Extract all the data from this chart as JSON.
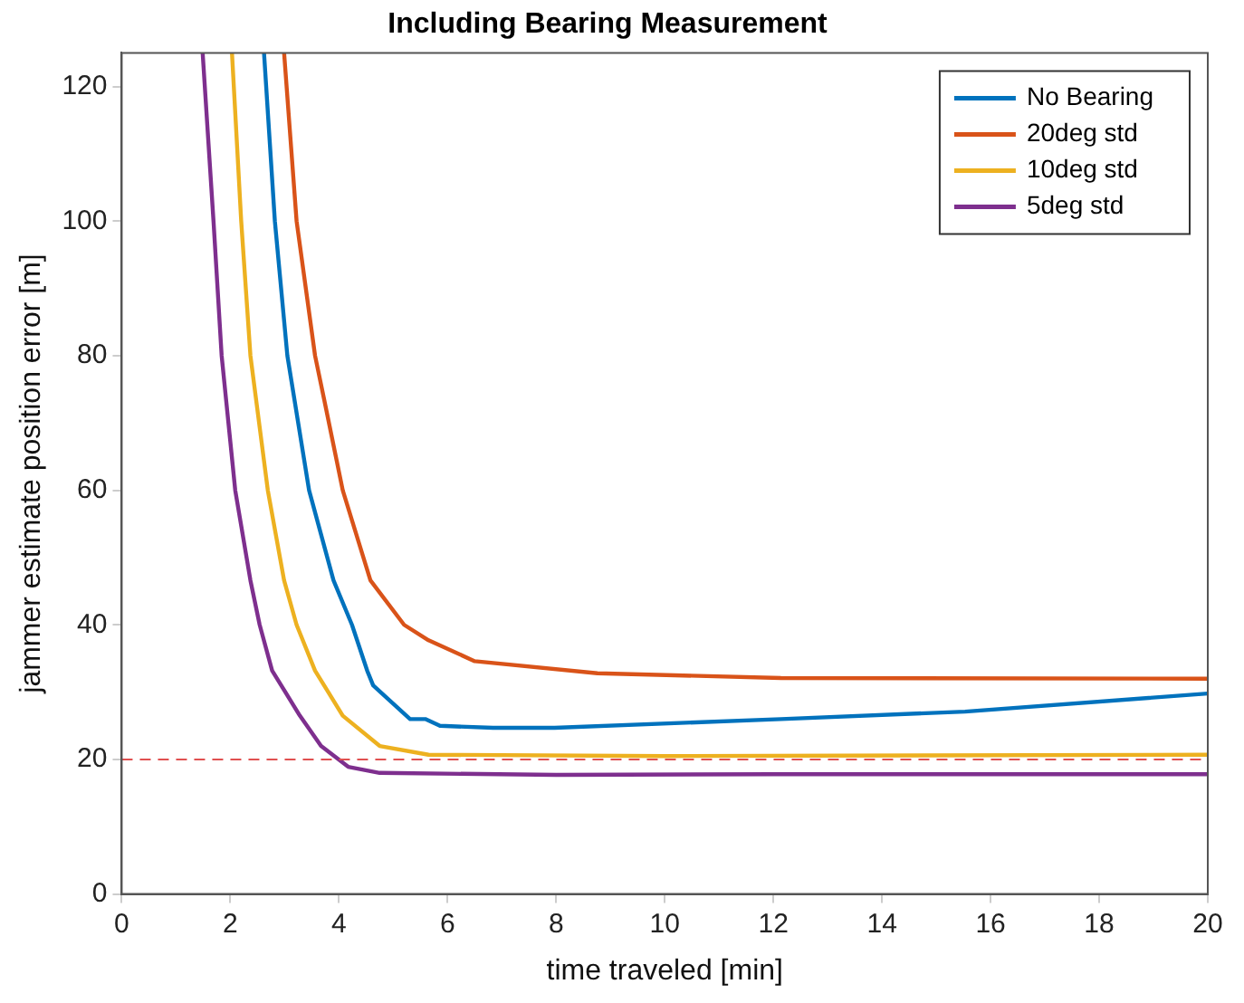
{
  "chart_data": {
    "type": "line",
    "title": "Including Bearing Measurement",
    "xlabel": "time traveled [min]",
    "ylabel": "jammer estimate position error [m]",
    "xlim": [
      0,
      20
    ],
    "xticks": [
      0,
      2,
      4,
      6,
      8,
      10,
      12,
      14,
      16,
      18,
      20
    ],
    "ylim": [
      0,
      125
    ],
    "yticks": [
      0,
      20,
      40,
      60,
      80,
      100,
      120
    ],
    "grid": false,
    "legend": "top right",
    "marker": "none",
    "line_style": "solid",
    "ref_lines": [
      {
        "axis": "y",
        "value": 20,
        "color": "#e05050",
        "line_style": "dashed"
      }
    ],
    "series": [
      {
        "name": "No Bearing",
        "color": "#0072bd",
        "x": [
          2.62,
          2.82,
          3.05,
          3.45,
          3.9,
          4.24,
          4.52,
          4.63,
          5.31,
          5.59,
          5.86,
          6.84,
          7.97,
          12.14,
          15.53,
          20
        ],
        "values": [
          125,
          100,
          80,
          60,
          46.6,
          40,
          33.2,
          31,
          26,
          26,
          25,
          24.7,
          24.7,
          26,
          27.1,
          29.8
        ]
      },
      {
        "name": "20deg std",
        "color": "#d95319",
        "x": [
          2.99,
          3.22,
          3.56,
          3.73,
          4.07,
          4.58,
          5.2,
          5.65,
          6.5,
          8.76,
          12.14,
          20
        ],
        "values": [
          125,
          100,
          80,
          73.4,
          60,
          46.6,
          40,
          37.7,
          34.6,
          32.8,
          32.1,
          32
        ]
      },
      {
        "name": "10deg std",
        "color": "#edb120",
        "x": [
          2.03,
          2.2,
          2.37,
          2.69,
          2.99,
          3.22,
          3.56,
          4.07,
          4.75,
          5.65,
          10,
          20
        ],
        "values": [
          125,
          100,
          80,
          60,
          46.6,
          40,
          33.2,
          26.5,
          22,
          20.7,
          20.5,
          20.7
        ]
      },
      {
        "name": "5deg std",
        "color": "#7e2f8e",
        "x": [
          1.49,
          1.69,
          1.84,
          2.09,
          2.37,
          2.54,
          2.77,
          3.28,
          3.67,
          4.17,
          4.75,
          8,
          12,
          20
        ],
        "values": [
          125,
          100,
          80,
          60,
          46.6,
          40,
          33.2,
          26.5,
          22,
          18.9,
          18,
          17.7,
          17.8,
          17.8
        ]
      }
    ]
  }
}
